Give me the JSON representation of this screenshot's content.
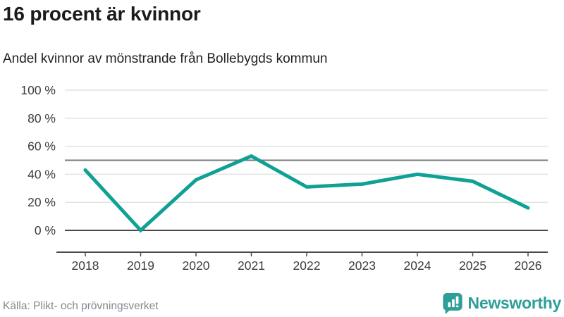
{
  "header": {
    "title": "16 procent är kvinnor",
    "subtitle": "Andel kvinnor av mönstrande från Bollebygds kommun"
  },
  "footer": {
    "source": "Källa: Plikt- och prövningsverket",
    "brand": "Newsworthy"
  },
  "colors": {
    "line": "#0fa194",
    "brand": "#2d9e98",
    "grid": "#e3e3e3",
    "axis": "#4a4a4a",
    "reference": "#7a7a7a"
  },
  "chart_data": {
    "type": "line",
    "categories": [
      "2018",
      "2019",
      "2020",
      "2021",
      "2022",
      "2023",
      "2024",
      "2025",
      "2026"
    ],
    "values": [
      43,
      0,
      36,
      53,
      31,
      33,
      40,
      35,
      16
    ],
    "title": "16 procent är kvinnor",
    "subtitle": "Andel kvinnor av mönstrande från Bollebygds kommun",
    "xlabel": "",
    "ylabel": "",
    "unit": "%",
    "ylim": [
      0,
      100
    ],
    "yticks": [
      0,
      20,
      40,
      60,
      80,
      100
    ],
    "ytick_suffix": " %",
    "reference_line": 50,
    "grid": "horizontal",
    "legend": "none"
  }
}
